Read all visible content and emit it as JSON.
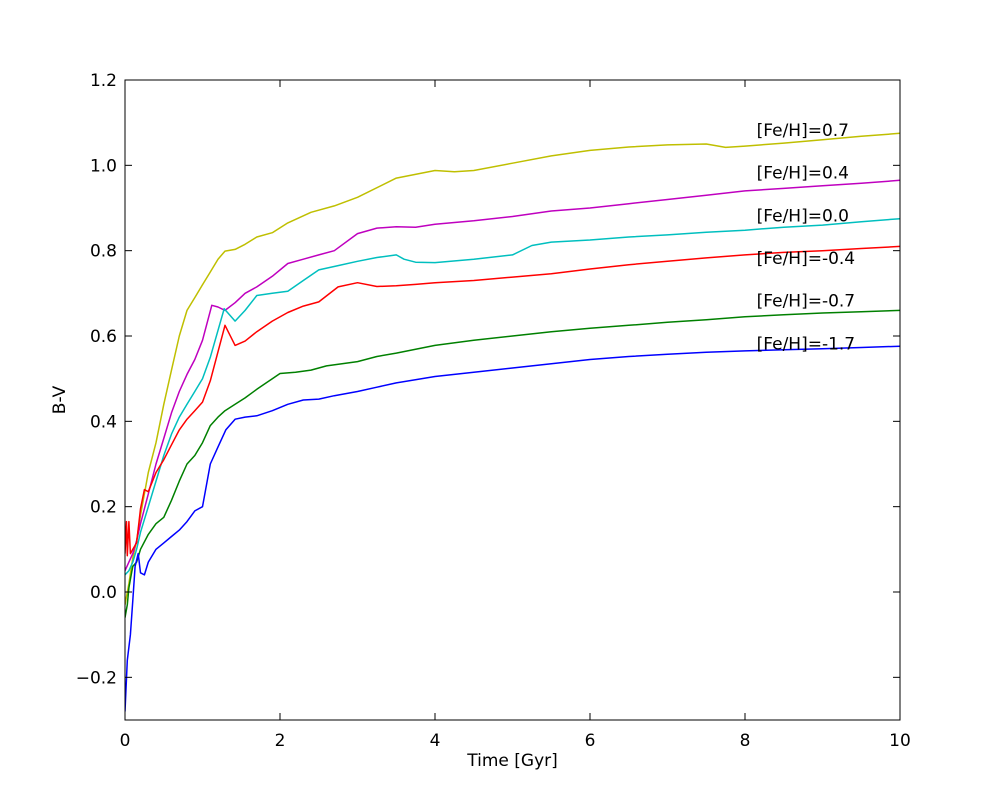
{
  "chart_data": {
    "type": "line",
    "title": "",
    "xlabel": "Time [Gyr]",
    "ylabel": "B-V",
    "xlim": [
      0,
      10
    ],
    "ylim": [
      -0.3,
      1.2
    ],
    "xticks": [
      0,
      2,
      4,
      6,
      8,
      10
    ],
    "xtick_labels": [
      "0",
      "2",
      "4",
      "6",
      "8",
      "10"
    ],
    "yticks": [
      -0.2,
      0.0,
      0.2,
      0.4,
      0.6,
      0.8,
      1.0,
      1.2
    ],
    "ytick_labels": [
      "−0.2",
      "0.0",
      "0.2",
      "0.4",
      "0.6",
      "0.8",
      "1.0",
      "1.2"
    ],
    "grid": false,
    "legend": "none",
    "series": [
      {
        "name": "[Fe/H]=0.7",
        "color": "#bfbf00",
        "label_position": [
          8.15,
          1.083
        ],
        "x": [
          0,
          0.05,
          0.1,
          0.15,
          0.2,
          0.3,
          0.4,
          0.5,
          0.6,
          0.7,
          0.8,
          0.9,
          1.0,
          1.1,
          1.2,
          1.29,
          1.42,
          1.55,
          1.7,
          1.9,
          2.1,
          2.4,
          2.7,
          3.0,
          3.5,
          4.0,
          4.25,
          4.5,
          5.0,
          5.5,
          6.0,
          6.5,
          7.0,
          7.5,
          7.75,
          8.0,
          8.5,
          9.0,
          9.5,
          10.0
        ],
        "y": [
          -0.03,
          0.02,
          0.08,
          0.12,
          0.18,
          0.28,
          0.35,
          0.44,
          0.52,
          0.6,
          0.66,
          0.69,
          0.72,
          0.75,
          0.78,
          0.799,
          0.803,
          0.815,
          0.832,
          0.842,
          0.865,
          0.89,
          0.905,
          0.925,
          0.97,
          0.988,
          0.985,
          0.988,
          1.005,
          1.022,
          1.035,
          1.043,
          1.048,
          1.05,
          1.042,
          1.045,
          1.052,
          1.06,
          1.068,
          1.075
        ]
      },
      {
        "name": "[Fe/H]=0.4",
        "color": "#bf00bf",
        "label_position": [
          8.15,
          0.983
        ],
        "x": [
          0,
          0.05,
          0.1,
          0.15,
          0.2,
          0.3,
          0.4,
          0.5,
          0.6,
          0.7,
          0.8,
          0.9,
          1.0,
          1.12,
          1.2,
          1.29,
          1.42,
          1.55,
          1.7,
          1.9,
          2.1,
          2.3,
          2.5,
          2.7,
          3.0,
          3.25,
          3.5,
          3.75,
          4.0,
          4.5,
          5.0,
          5.5,
          6.0,
          6.5,
          7.0,
          7.5,
          8.0,
          8.5,
          9.0,
          9.5,
          10.0
        ],
        "y": [
          0.05,
          0.07,
          0.09,
          0.12,
          0.16,
          0.23,
          0.3,
          0.36,
          0.42,
          0.47,
          0.51,
          0.545,
          0.59,
          0.672,
          0.668,
          0.66,
          0.678,
          0.7,
          0.715,
          0.74,
          0.77,
          0.78,
          0.79,
          0.8,
          0.84,
          0.853,
          0.856,
          0.855,
          0.862,
          0.87,
          0.88,
          0.893,
          0.9,
          0.91,
          0.92,
          0.93,
          0.94,
          0.946,
          0.952,
          0.958,
          0.965
        ]
      },
      {
        "name": "[Fe/H]=0.0",
        "color": "#00bfbf",
        "label_position": [
          8.15,
          0.883
        ],
        "x": [
          0,
          0.05,
          0.1,
          0.15,
          0.2,
          0.3,
          0.4,
          0.5,
          0.6,
          0.7,
          0.8,
          0.9,
          1.0,
          1.1,
          1.28,
          1.42,
          1.55,
          1.7,
          1.9,
          2.1,
          2.3,
          2.5,
          2.75,
          3.0,
          3.25,
          3.5,
          3.6,
          3.75,
          4.0,
          4.5,
          5.0,
          5.25,
          5.5,
          6.0,
          6.5,
          7.0,
          7.5,
          8.0,
          8.5,
          9.0,
          9.5,
          10.0
        ],
        "y": [
          0.04,
          0.05,
          0.07,
          0.1,
          0.14,
          0.2,
          0.26,
          0.32,
          0.37,
          0.41,
          0.44,
          0.47,
          0.5,
          0.55,
          0.664,
          0.635,
          0.66,
          0.695,
          0.7,
          0.705,
          0.73,
          0.755,
          0.765,
          0.775,
          0.784,
          0.79,
          0.78,
          0.773,
          0.772,
          0.78,
          0.79,
          0.812,
          0.82,
          0.825,
          0.832,
          0.837,
          0.843,
          0.848,
          0.855,
          0.86,
          0.868,
          0.875
        ]
      },
      {
        "name": "[Fe/H]=-0.4",
        "color": "#ff0000",
        "label_position": [
          8.15,
          0.783
        ],
        "x": [
          0,
          0.02,
          0.03,
          0.05,
          0.07,
          0.1,
          0.15,
          0.2,
          0.25,
          0.3,
          0.4,
          0.5,
          0.6,
          0.7,
          0.8,
          0.9,
          1.0,
          1.1,
          1.29,
          1.42,
          1.55,
          1.7,
          1.9,
          2.1,
          2.3,
          2.5,
          2.75,
          3.0,
          3.25,
          3.5,
          3.75,
          4.0,
          4.5,
          5.0,
          5.5,
          6.0,
          6.5,
          7.0,
          7.5,
          8.0,
          8.5,
          9.0,
          9.5,
          10.0
        ],
        "y": [
          0.09,
          0.165,
          0.085,
          0.165,
          0.09,
          0.1,
          0.115,
          0.195,
          0.24,
          0.235,
          0.28,
          0.31,
          0.345,
          0.38,
          0.405,
          0.425,
          0.445,
          0.495,
          0.625,
          0.578,
          0.588,
          0.61,
          0.635,
          0.655,
          0.67,
          0.68,
          0.715,
          0.725,
          0.716,
          0.718,
          0.721,
          0.725,
          0.73,
          0.738,
          0.746,
          0.757,
          0.767,
          0.775,
          0.783,
          0.79,
          0.796,
          0.8,
          0.805,
          0.81
        ]
      },
      {
        "name": "[Fe/H]=-0.7",
        "color": "#008000",
        "label_position": [
          8.15,
          0.683
        ],
        "x": [
          0,
          0.03,
          0.05,
          0.08,
          0.1,
          0.15,
          0.2,
          0.3,
          0.4,
          0.5,
          0.6,
          0.7,
          0.8,
          0.9,
          1.0,
          1.1,
          1.2,
          1.29,
          1.42,
          1.55,
          1.7,
          1.9,
          2.0,
          2.2,
          2.4,
          2.6,
          2.8,
          3.0,
          3.25,
          3.5,
          4.0,
          4.5,
          5.0,
          5.5,
          6.0,
          6.5,
          7.0,
          7.5,
          8.0,
          8.5,
          9.0,
          9.5,
          10.0
        ],
        "y": [
          -0.06,
          -0.03,
          0.01,
          0.04,
          0.06,
          0.07,
          0.1,
          0.135,
          0.16,
          0.175,
          0.215,
          0.26,
          0.3,
          0.32,
          0.35,
          0.39,
          0.41,
          0.425,
          0.44,
          0.455,
          0.475,
          0.5,
          0.512,
          0.515,
          0.52,
          0.53,
          0.535,
          0.54,
          0.552,
          0.56,
          0.578,
          0.59,
          0.6,
          0.61,
          0.618,
          0.625,
          0.632,
          0.638,
          0.645,
          0.65,
          0.654,
          0.657,
          0.66
        ]
      },
      {
        "name": "[Fe/H]=-1.7",
        "color": "#0000ff",
        "label_position": [
          8.15,
          0.583
        ],
        "x": [
          0,
          0.03,
          0.07,
          0.1,
          0.13,
          0.17,
          0.2,
          0.25,
          0.3,
          0.4,
          0.5,
          0.6,
          0.7,
          0.8,
          0.9,
          1.0,
          1.1,
          1.2,
          1.3,
          1.42,
          1.55,
          1.7,
          1.9,
          2.1,
          2.3,
          2.5,
          2.7,
          3.0,
          3.25,
          3.5,
          4.0,
          4.25,
          4.5,
          5.0,
          5.5,
          6.0,
          6.5,
          7.0,
          7.5,
          8.0,
          8.5,
          9.0,
          9.5,
          10.0
        ],
        "y": [
          -0.28,
          -0.16,
          -0.1,
          -0.02,
          0.06,
          0.09,
          0.045,
          0.04,
          0.07,
          0.1,
          0.115,
          0.13,
          0.145,
          0.165,
          0.19,
          0.2,
          0.3,
          0.34,
          0.38,
          0.405,
          0.41,
          0.413,
          0.425,
          0.44,
          0.45,
          0.452,
          0.46,
          0.47,
          0.48,
          0.49,
          0.505,
          0.51,
          0.515,
          0.525,
          0.535,
          0.545,
          0.552,
          0.557,
          0.562,
          0.565,
          0.568,
          0.57,
          0.573,
          0.576
        ]
      }
    ]
  }
}
